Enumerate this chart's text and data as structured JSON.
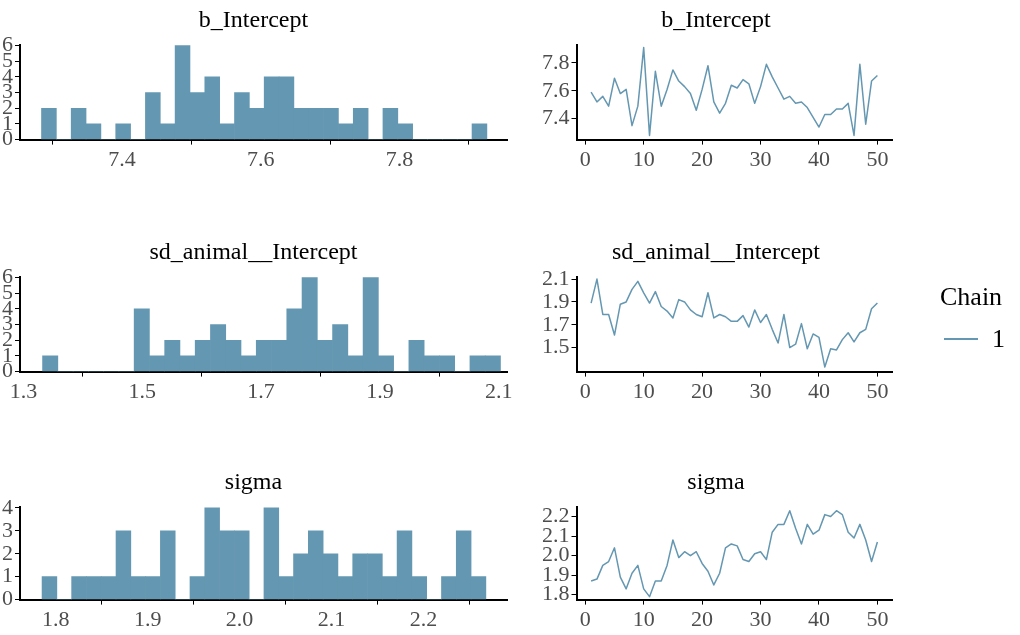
{
  "chart_data": [
    {
      "type": "histogram",
      "title": "b_Intercept",
      "bins": [
        7.284,
        7.3054,
        7.3268,
        7.3482,
        7.3696,
        7.391,
        7.4124,
        7.4338,
        7.4552,
        7.4766,
        7.498,
        7.5194,
        7.5408,
        7.5622,
        7.5836,
        7.605,
        7.6264,
        7.6478,
        7.6692,
        7.6906,
        7.712,
        7.7334,
        7.7548,
        7.7762,
        7.7976,
        7.819,
        7.8404,
        7.8618,
        7.8832,
        7.9046,
        7.926
      ],
      "values": [
        2,
        0,
        2,
        1,
        0,
        1,
        0,
        3,
        1,
        6,
        3,
        4,
        1,
        3,
        2,
        4,
        4,
        2,
        2,
        2,
        1,
        2,
        0,
        2,
        1,
        0,
        0,
        0,
        0,
        1
      ],
      "color": "#6497b1",
      "xlim": [
        7.253,
        7.955
      ],
      "xticks": [
        7.4,
        7.6,
        7.8
      ],
      "ylim": [
        0,
        6.05
      ],
      "yticks": [
        0,
        1,
        2,
        3,
        4,
        5,
        6
      ],
      "grid": false,
      "legend": false
    },
    {
      "type": "line",
      "title": "b_Intercept",
      "x": [
        1,
        2,
        3,
        4,
        5,
        6,
        7,
        8,
        9,
        10,
        11,
        12,
        13,
        14,
        15,
        16,
        17,
        18,
        19,
        20,
        21,
        22,
        23,
        24,
        25,
        26,
        27,
        28,
        29,
        30,
        31,
        32,
        33,
        34,
        35,
        36,
        37,
        38,
        39,
        40,
        41,
        42,
        43,
        44,
        45,
        46,
        47,
        48,
        49,
        50
      ],
      "series": [
        {
          "color": "#6497b1",
          "values": [
            7.59,
            7.52,
            7.56,
            7.49,
            7.69,
            7.58,
            7.61,
            7.35,
            7.49,
            7.91,
            7.28,
            7.74,
            7.49,
            7.61,
            7.75,
            7.67,
            7.63,
            7.58,
            7.46,
            7.61,
            7.78,
            7.52,
            7.44,
            7.51,
            7.64,
            7.62,
            7.68,
            7.65,
            7.51,
            7.63,
            7.79,
            7.7,
            7.62,
            7.54,
            7.56,
            7.51,
            7.52,
            7.48,
            7.41,
            7.34,
            7.43,
            7.43,
            7.47,
            7.47,
            7.51,
            7.28,
            7.79,
            7.36,
            7.67,
            7.71
          ]
        }
      ],
      "xlim": [
        -1.5,
        52.5
      ],
      "xticks": [
        0,
        10,
        20,
        30,
        40,
        50
      ],
      "ylim": [
        7.25,
        7.93
      ],
      "yticks": [
        7.4,
        7.6,
        7.8
      ],
      "grid": false,
      "legend": false,
      "marker": "none"
    },
    {
      "type": "histogram",
      "title": "sd_animal__Intercept",
      "bins": [
        1.332,
        1.3577,
        1.3834,
        1.4091,
        1.4348,
        1.4605,
        1.4862,
        1.5119,
        1.5376,
        1.5633,
        1.589,
        1.6147,
        1.6404,
        1.6661,
        1.6918,
        1.7175,
        1.7432,
        1.7689,
        1.7946,
        1.8203,
        1.846,
        1.8717,
        1.8974,
        1.9231,
        1.9488,
        1.9745,
        2.0002,
        2.0259,
        2.0516,
        2.0773,
        2.103
      ],
      "values": [
        1,
        0,
        0,
        0,
        0,
        0,
        4,
        1,
        2,
        1,
        2,
        3,
        2,
        1,
        2,
        2,
        4,
        6,
        2,
        3,
        1,
        6,
        1,
        0,
        2,
        1,
        1,
        0,
        1,
        1
      ],
      "color": "#6497b1",
      "xlim": [
        1.294,
        2.114
      ],
      "xticks": [
        1.3,
        1.5,
        1.7,
        1.9,
        2.1
      ],
      "ylim": [
        0,
        6.05
      ],
      "yticks": [
        0,
        1,
        2,
        3,
        4,
        5,
        6
      ],
      "grid": false,
      "legend": false
    },
    {
      "type": "line",
      "title": "sd_animal__Intercept",
      "legend_title": "Chain",
      "x": [
        1,
        2,
        3,
        4,
        5,
        6,
        7,
        8,
        9,
        10,
        11,
        12,
        13,
        14,
        15,
        16,
        17,
        18,
        19,
        20,
        21,
        22,
        23,
        24,
        25,
        26,
        27,
        28,
        29,
        30,
        31,
        32,
        33,
        34,
        35,
        36,
        37,
        38,
        39,
        40,
        41,
        42,
        43,
        44,
        45,
        46,
        47,
        48,
        49,
        50
      ],
      "series": [
        {
          "name": "1",
          "color": "#6497b1",
          "values": [
            1.89,
            2.1,
            1.79,
            1.79,
            1.61,
            1.88,
            1.9,
            2.01,
            2.08,
            1.98,
            1.89,
            1.99,
            1.86,
            1.82,
            1.76,
            1.92,
            1.9,
            1.83,
            1.79,
            1.77,
            1.98,
            1.76,
            1.79,
            1.77,
            1.73,
            1.73,
            1.78,
            1.68,
            1.83,
            1.72,
            1.79,
            1.66,
            1.54,
            1.79,
            1.5,
            1.53,
            1.71,
            1.49,
            1.62,
            1.59,
            1.33,
            1.49,
            1.48,
            1.57,
            1.63,
            1.55,
            1.63,
            1.66,
            1.84,
            1.89
          ]
        }
      ],
      "xlim": [
        -1.5,
        52.5
      ],
      "xticks": [
        0,
        10,
        20,
        30,
        40,
        50
      ],
      "ylim": [
        1.29,
        2.12
      ],
      "yticks": [
        1.5,
        1.7,
        1.9,
        2.1
      ],
      "grid": false,
      "legend": "right",
      "marker": "none"
    },
    {
      "type": "histogram",
      "title": "sigma",
      "bins": [
        1.785,
        1.8011,
        1.8172,
        1.8333,
        1.8494,
        1.8655,
        1.8816,
        1.8977,
        1.9138,
        1.9299,
        1.946,
        1.9621,
        1.9782,
        1.9943,
        2.0104,
        2.0265,
        2.0426,
        2.0587,
        2.0748,
        2.0909,
        2.107,
        2.1231,
        2.1392,
        2.1553,
        2.1714,
        2.1875,
        2.2036,
        2.2197,
        2.2358,
        2.2519,
        2.268
      ],
      "values": [
        1,
        0,
        1,
        1,
        1,
        3,
        1,
        1,
        3,
        0,
        1,
        4,
        3,
        3,
        0,
        4,
        1,
        2,
        3,
        2,
        1,
        2,
        2,
        1,
        3,
        1,
        0,
        1,
        3,
        1
      ],
      "color": "#6497b1",
      "xlim": [
        1.761,
        2.291
      ],
      "xticks": [
        1.8,
        1.9,
        {
          "value": 2,
          "label": "2.0"
        },
        2.1,
        2.2
      ],
      "ylim": [
        0,
        4.05
      ],
      "yticks": [
        0,
        1,
        2,
        3,
        4
      ],
      "grid": false,
      "legend": false
    },
    {
      "type": "line",
      "title": "sigma",
      "x": [
        1,
        2,
        3,
        4,
        5,
        6,
        7,
        8,
        9,
        10,
        11,
        12,
        13,
        14,
        15,
        16,
        17,
        18,
        19,
        20,
        21,
        22,
        23,
        24,
        25,
        26,
        27,
        28,
        29,
        30,
        31,
        32,
        33,
        34,
        35,
        36,
        37,
        38,
        39,
        40,
        41,
        42,
        43,
        44,
        45,
        46,
        47,
        48,
        49,
        50
      ],
      "series": [
        {
          "color": "#6497b1",
          "values": [
            1.87,
            1.88,
            1.95,
            1.97,
            2.04,
            1.89,
            1.83,
            1.91,
            1.95,
            1.83,
            1.79,
            1.87,
            1.87,
            1.95,
            2.08,
            1.99,
            2.02,
            2.0,
            2.02,
            1.96,
            1.92,
            1.85,
            1.91,
            2.04,
            2.06,
            2.05,
            1.98,
            1.97,
            2.01,
            2.02,
            1.98,
            2.12,
            2.16,
            2.16,
            2.23,
            2.14,
            2.06,
            2.16,
            2.11,
            2.13,
            2.21,
            2.2,
            2.23,
            2.21,
            2.12,
            2.09,
            2.16,
            2.08,
            1.97,
            2.07
          ]
        }
      ],
      "xlim": [
        -1.5,
        52.5
      ],
      "xticks": [
        0,
        10,
        20,
        30,
        40,
        50
      ],
      "ylim": [
        1.775,
        2.25
      ],
      "yticks": [
        1.8,
        1.9,
        {
          "value": 2,
          "label": "2.0"
        },
        2.1,
        2.2
      ],
      "grid": false,
      "legend": false,
      "marker": "none"
    }
  ]
}
